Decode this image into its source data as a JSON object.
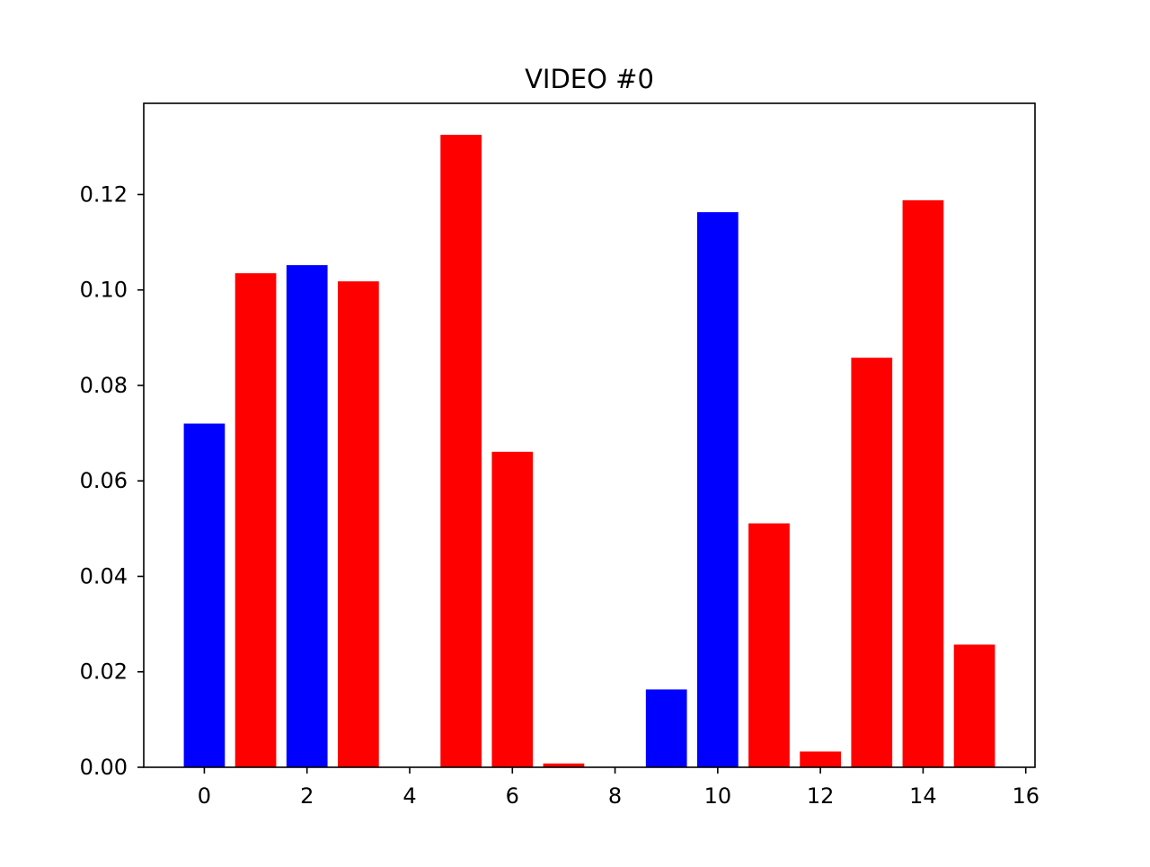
{
  "chart_data": {
    "type": "bar",
    "title": "VIDEO #0",
    "xlabel": "",
    "ylabel": "",
    "x": [
      0,
      1,
      2,
      3,
      4,
      5,
      6,
      7,
      8,
      9,
      10,
      11,
      12,
      13,
      14,
      15
    ],
    "values": [
      0.072,
      0.1035,
      0.1052,
      0.1018,
      0.0,
      0.1325,
      0.0661,
      0.0008,
      0.0,
      0.0163,
      0.1163,
      0.0511,
      0.0033,
      0.0858,
      0.1188,
      0.0257
    ],
    "bar_colors": [
      "#0000ff",
      "#ff0000",
      "#0000ff",
      "#ff0000",
      "#ff0000",
      "#ff0000",
      "#ff0000",
      "#ff0000",
      "#ff0000",
      "#0000ff",
      "#0000ff",
      "#ff0000",
      "#ff0000",
      "#ff0000",
      "#ff0000",
      "#ff0000"
    ],
    "bar_width": 0.8,
    "xlim": [
      -1.18,
      16.18
    ],
    "ylim": [
      0,
      0.1391
    ],
    "xticks": [
      0,
      2,
      4,
      6,
      8,
      10,
      12,
      14,
      16
    ],
    "xtick_labels": [
      "0",
      "2",
      "4",
      "6",
      "8",
      "10",
      "12",
      "14",
      "16"
    ],
    "yticks": [
      0,
      0.02,
      0.04,
      0.06,
      0.08,
      0.1,
      0.12
    ],
    "ytick_labels": [
      "0.00",
      "0.02",
      "0.04",
      "0.06",
      "0.08",
      "0.10",
      "0.12"
    ],
    "grid": false,
    "legend": "none"
  }
}
